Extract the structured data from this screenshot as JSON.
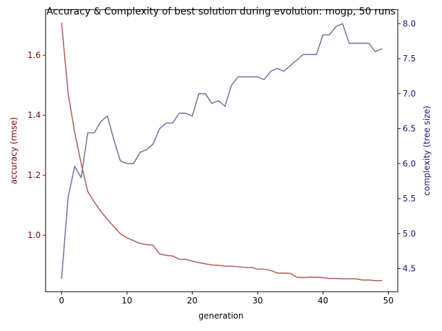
{
  "chart_data": {
    "type": "line",
    "title": "Accuracy & Complexity of best solution during evolution: mogp, 50 runs",
    "xlabel": "generation",
    "ylabel_left": "accuracy (rmse)",
    "ylabel_right": "complexity (tree size)",
    "xlim": [
      -2.45,
      51.45
    ],
    "ylim_left": [
      0.812,
      1.752
    ],
    "ylim_right": [
      4.17,
      8.2
    ],
    "x_ticks": [
      0,
      10,
      20,
      30,
      40,
      50
    ],
    "x_tick_labels": [
      "0",
      "10",
      "20",
      "30",
      "40",
      "50"
    ],
    "y_left_ticks": [
      1.0,
      1.2,
      1.4,
      1.6
    ],
    "y_left_tick_labels": [
      "1.0",
      "1.2",
      "1.4",
      "1.6"
    ],
    "y_right_ticks": [
      4.5,
      5.0,
      5.5,
      6.0,
      6.5,
      7.0,
      7.5,
      8.0
    ],
    "y_right_tick_labels": [
      "4.5",
      "5.0",
      "5.5",
      "6.0",
      "6.5",
      "7.0",
      "7.5",
      "8.0"
    ],
    "x": [
      0,
      1,
      2,
      3,
      4,
      5,
      6,
      7,
      8,
      9,
      10,
      11,
      12,
      13,
      14,
      15,
      16,
      17,
      18,
      19,
      20,
      21,
      22,
      23,
      24,
      25,
      26,
      27,
      28,
      29,
      30,
      31,
      32,
      33,
      34,
      35,
      36,
      37,
      38,
      39,
      40,
      41,
      42,
      43,
      44,
      45,
      46,
      47,
      48,
      49
    ],
    "series": [
      {
        "axis": "left",
        "color": "#b5615e",
        "values": [
          1.707,
          1.473,
          1.343,
          1.239,
          1.146,
          1.111,
          1.08,
          1.053,
          1.029,
          1.005,
          0.992,
          0.982,
          0.973,
          0.969,
          0.967,
          0.938,
          0.933,
          0.931,
          0.92,
          0.92,
          0.914,
          0.909,
          0.905,
          0.901,
          0.9,
          0.897,
          0.897,
          0.895,
          0.893,
          0.893,
          0.887,
          0.887,
          0.883,
          0.874,
          0.874,
          0.873,
          0.86,
          0.859,
          0.86,
          0.86,
          0.859,
          0.856,
          0.856,
          0.855,
          0.855,
          0.855,
          0.851,
          0.851,
          0.849,
          0.849
        ]
      },
      {
        "axis": "right",
        "color": "#76779f",
        "values": [
          4.36,
          5.52,
          5.96,
          5.8,
          6.44,
          6.44,
          6.6,
          6.68,
          6.34,
          6.04,
          6.0,
          6.0,
          6.16,
          6.2,
          6.28,
          6.5,
          6.58,
          6.58,
          6.72,
          6.72,
          6.68,
          7.0,
          7.0,
          6.86,
          6.9,
          6.82,
          7.12,
          7.24,
          7.24,
          7.24,
          7.24,
          7.2,
          7.32,
          7.36,
          7.32,
          7.4,
          7.48,
          7.56,
          7.56,
          7.56,
          7.84,
          7.84,
          7.96,
          8.0,
          7.72,
          7.72,
          7.72,
          7.72,
          7.6,
          7.64
        ]
      }
    ],
    "colors": {
      "left_axis": "#800000",
      "right_axis": "#191970",
      "frame": "#000000"
    }
  }
}
